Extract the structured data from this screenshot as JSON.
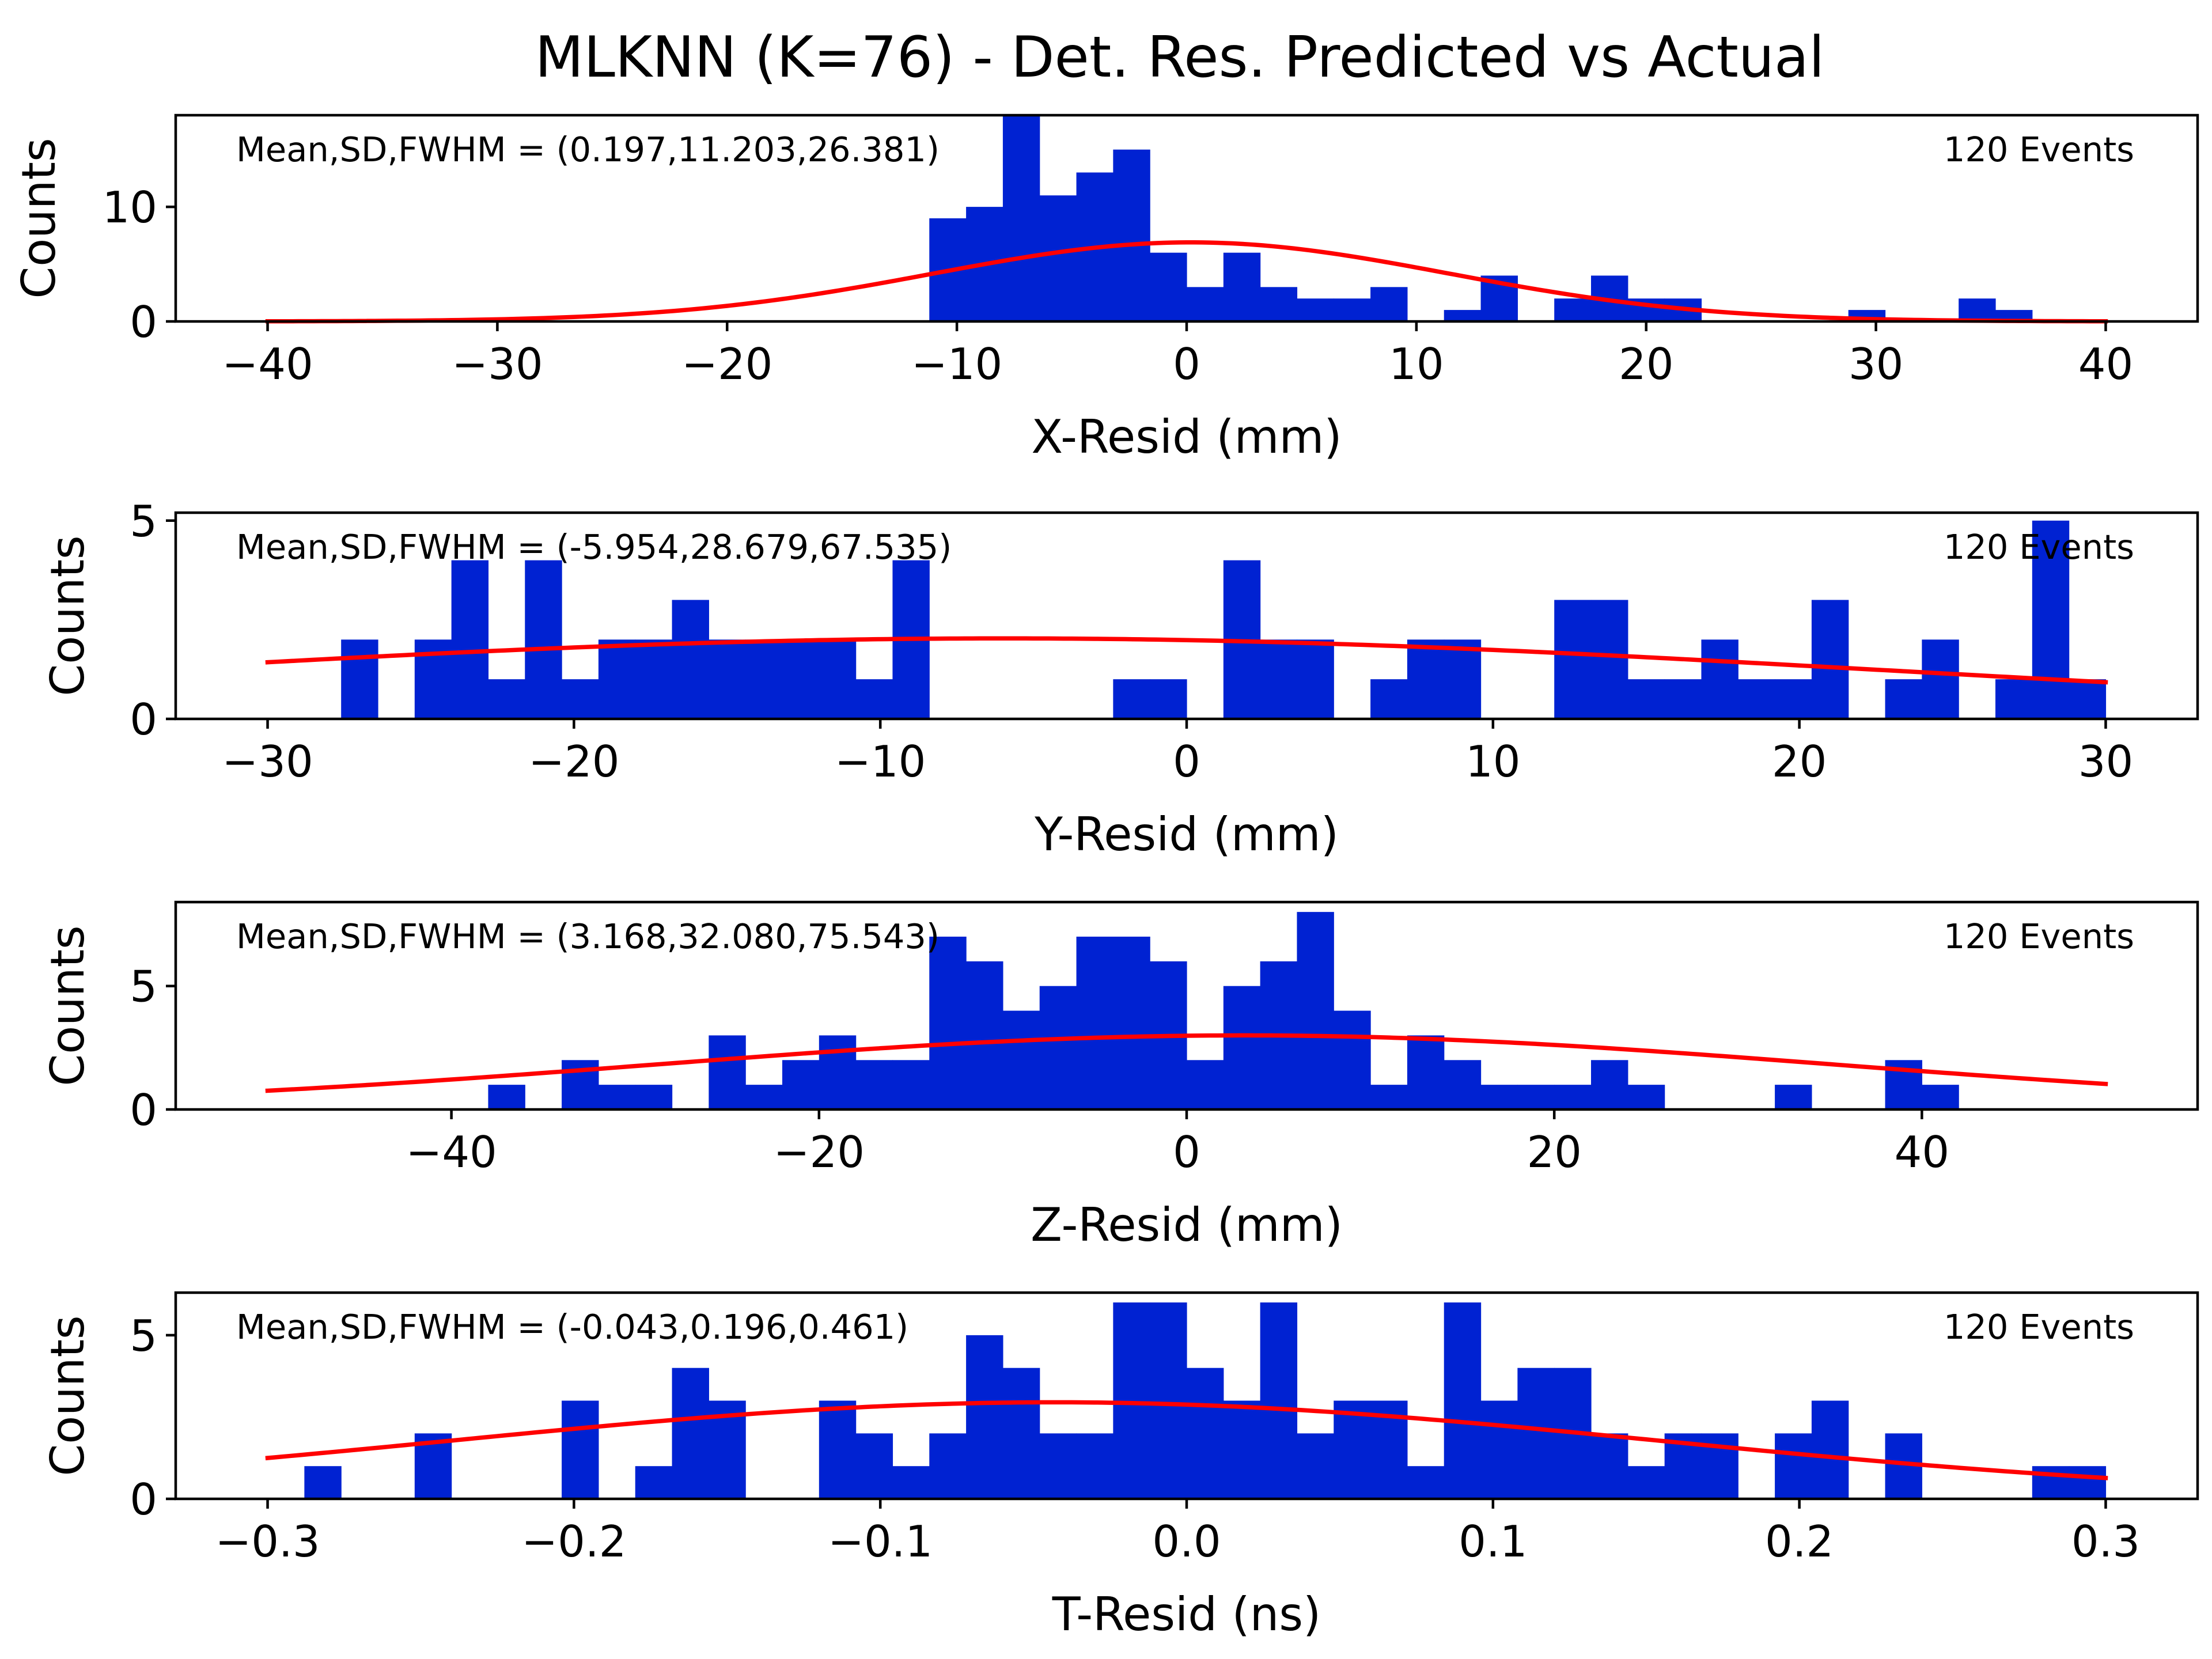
{
  "figure": {
    "title": "MLKNN (K=76) - Det. Res. Predicted vs Actual"
  },
  "colors": {
    "hist": "#0022d2",
    "fit": "#ff0000",
    "axes": "#000000",
    "background": "#ffffff"
  },
  "chart_data": [
    {
      "type": "bar",
      "subtype": "histogram-with-gaussian-fit",
      "xlabel": "X-Resid (mm)",
      "ylabel": "Counts",
      "annotation": "Mean,SD,FWHM = (0.197,11.203,26.381)",
      "events_label": "120 Events",
      "xlim": [
        -44,
        44
      ],
      "ylim": [
        0,
        18
      ],
      "xticks": [
        -40,
        -30,
        -20,
        -10,
        0,
        10,
        20,
        30,
        40
      ],
      "xtick_labels": [
        "−40",
        "−30",
        "−20",
        "−10",
        "0",
        "10",
        "20",
        "30",
        "40"
      ],
      "yticks": [
        0,
        10
      ],
      "ytick_labels": [
        "0",
        "10"
      ],
      "bin_width": 1.6,
      "bin_starts": [
        -11.2,
        -9.6,
        -8.0,
        -6.4,
        -4.8,
        -3.2,
        -1.6,
        0.0,
        1.6,
        3.2,
        4.8,
        6.4,
        8.0,
        9.6,
        11.2,
        12.8,
        14.4,
        16.0,
        17.6,
        19.2,
        20.8,
        22.4,
        24.0,
        25.6,
        27.2,
        28.8,
        30.4,
        32.0,
        33.6,
        35.2
      ],
      "counts": [
        9,
        10,
        18,
        11,
        13,
        15,
        6,
        3,
        6,
        3,
        2,
        2,
        3,
        0,
        1,
        4,
        0,
        2,
        4,
        2,
        2,
        0,
        0,
        0,
        0,
        1,
        0,
        0,
        2,
        1
      ],
      "fit": {
        "amplitude": 6.9,
        "mean": 0.197,
        "sd": 11.203,
        "x_range": [
          -40,
          40
        ]
      }
    },
    {
      "type": "bar",
      "subtype": "histogram-with-gaussian-fit",
      "xlabel": "Y-Resid (mm)",
      "ylabel": "Counts",
      "annotation": "Mean,SD,FWHM = (-5.954,28.679,67.535)",
      "events_label": "120 Events",
      "xlim": [
        -33,
        33
      ],
      "ylim": [
        0,
        5.2
      ],
      "xticks": [
        -30,
        -20,
        -10,
        0,
        10,
        20,
        30
      ],
      "xtick_labels": [
        "−30",
        "−20",
        "−10",
        "0",
        "10",
        "20",
        "30"
      ],
      "yticks": [
        0,
        5
      ],
      "ytick_labels": [
        "0",
        "5"
      ],
      "bin_width": 1.2,
      "bin_starts": [
        -27.6,
        -26.4,
        -25.2,
        -24.0,
        -22.8,
        -21.6,
        -20.4,
        -19.2,
        -18.0,
        -16.8,
        -15.6,
        -14.4,
        -13.2,
        -12.0,
        -10.8,
        -9.6,
        -8.4,
        -7.2,
        -6.0,
        -4.8,
        -3.6,
        -2.4,
        -1.2,
        0.0,
        1.2,
        2.4,
        3.6,
        4.8,
        6.0,
        7.2,
        8.4,
        9.6,
        10.8,
        12.0,
        13.2,
        14.4,
        15.6,
        16.8,
        18.0,
        19.2,
        20.4,
        21.6,
        22.8,
        24.0,
        25.2,
        26.4,
        27.6,
        28.8
      ],
      "counts": [
        2,
        0,
        2,
        4,
        1,
        4,
        1,
        2,
        2,
        3,
        2,
        2,
        2,
        2,
        1,
        4,
        0,
        0,
        0,
        0,
        0,
        1,
        1,
        0,
        4,
        2,
        2,
        0,
        1,
        2,
        2,
        0,
        0,
        3,
        3,
        1,
        1,
        2,
        1,
        1,
        3,
        0,
        1,
        2,
        0,
        1,
        5,
        1
      ],
      "fit": {
        "amplitude": 2.03,
        "mean": -5.954,
        "sd": 28.679,
        "x_range": [
          -30,
          30
        ]
      }
    },
    {
      "type": "bar",
      "subtype": "histogram-with-gaussian-fit",
      "xlabel": "Z-Resid (mm)",
      "ylabel": "Counts",
      "annotation": "Mean,SD,FWHM = (3.168,32.080,75.543)",
      "events_label": "120 Events",
      "xlim": [
        -55,
        55
      ],
      "ylim": [
        0,
        8.4
      ],
      "xticks": [
        -40,
        -20,
        0,
        20,
        40
      ],
      "xtick_labels": [
        "−40",
        "−20",
        "0",
        "20",
        "40"
      ],
      "yticks": [
        0,
        5
      ],
      "ytick_labels": [
        "0",
        "5"
      ],
      "bin_width": 2.0,
      "bin_starts": [
        -38,
        -36,
        -34,
        -32,
        -30,
        -28,
        -26,
        -24,
        -22,
        -20,
        -18,
        -16,
        -14,
        -12,
        -10,
        -8,
        -6,
        -4,
        -2,
        0,
        2,
        4,
        6,
        8,
        10,
        12,
        14,
        16,
        18,
        20,
        22,
        24,
        26,
        28,
        30,
        32,
        34,
        36,
        38,
        40
      ],
      "counts": [
        1,
        0,
        2,
        1,
        1,
        0,
        3,
        1,
        2,
        3,
        2,
        2,
        7,
        6,
        4,
        5,
        7,
        7,
        6,
        2,
        5,
        6,
        8,
        4,
        1,
        3,
        2,
        1,
        1,
        1,
        2,
        1,
        0,
        0,
        0,
        1,
        0,
        0,
        2,
        1
      ],
      "fit": {
        "amplitude": 3.0,
        "mean": 3.168,
        "sd": 32.08,
        "x_range": [
          -50,
          50
        ]
      }
    },
    {
      "type": "bar",
      "subtype": "histogram-with-gaussian-fit",
      "xlabel": "T-Resid (ns)",
      "ylabel": "Counts",
      "annotation": "Mean,SD,FWHM = (-0.043,0.196,0.461)",
      "events_label": "120 Events",
      "xlim": [
        -0.33,
        0.33
      ],
      "ylim": [
        0,
        6.3
      ],
      "xticks": [
        -0.3,
        -0.2,
        -0.1,
        0.0,
        0.1,
        0.2,
        0.3
      ],
      "xtick_labels": [
        "−0.3",
        "−0.2",
        "−0.1",
        "0.0",
        "0.1",
        "0.2",
        "0.3"
      ],
      "yticks": [
        0,
        5
      ],
      "ytick_labels": [
        "0",
        "5"
      ],
      "bin_width": 0.012,
      "bin_starts": [
        -0.288,
        -0.276,
        -0.264,
        -0.252,
        -0.24,
        -0.228,
        -0.216,
        -0.204,
        -0.192,
        -0.18,
        -0.168,
        -0.156,
        -0.144,
        -0.132,
        -0.12,
        -0.108,
        -0.096,
        -0.084,
        -0.072,
        -0.06,
        -0.048,
        -0.036,
        -0.024,
        -0.012,
        0.0,
        0.012,
        0.024,
        0.036,
        0.048,
        0.06,
        0.072,
        0.084,
        0.096,
        0.108,
        0.12,
        0.132,
        0.144,
        0.156,
        0.168,
        0.18,
        0.192,
        0.204,
        0.216,
        0.228,
        0.24,
        0.252,
        0.264,
        0.276,
        0.288
      ],
      "counts": [
        1,
        0,
        0,
        2,
        0,
        0,
        0,
        3,
        0,
        1,
        4,
        3,
        0,
        0,
        3,
        2,
        1,
        2,
        5,
        4,
        2,
        2,
        6,
        6,
        4,
        3,
        6,
        2,
        3,
        3,
        1,
        6,
        3,
        4,
        4,
        2,
        1,
        2,
        2,
        0,
        2,
        3,
        0,
        2,
        0,
        0,
        0,
        1,
        1
      ],
      "fit": {
        "amplitude": 2.95,
        "mean": -0.043,
        "sd": 0.196,
        "x_range": [
          -0.3,
          0.3
        ]
      }
    }
  ]
}
